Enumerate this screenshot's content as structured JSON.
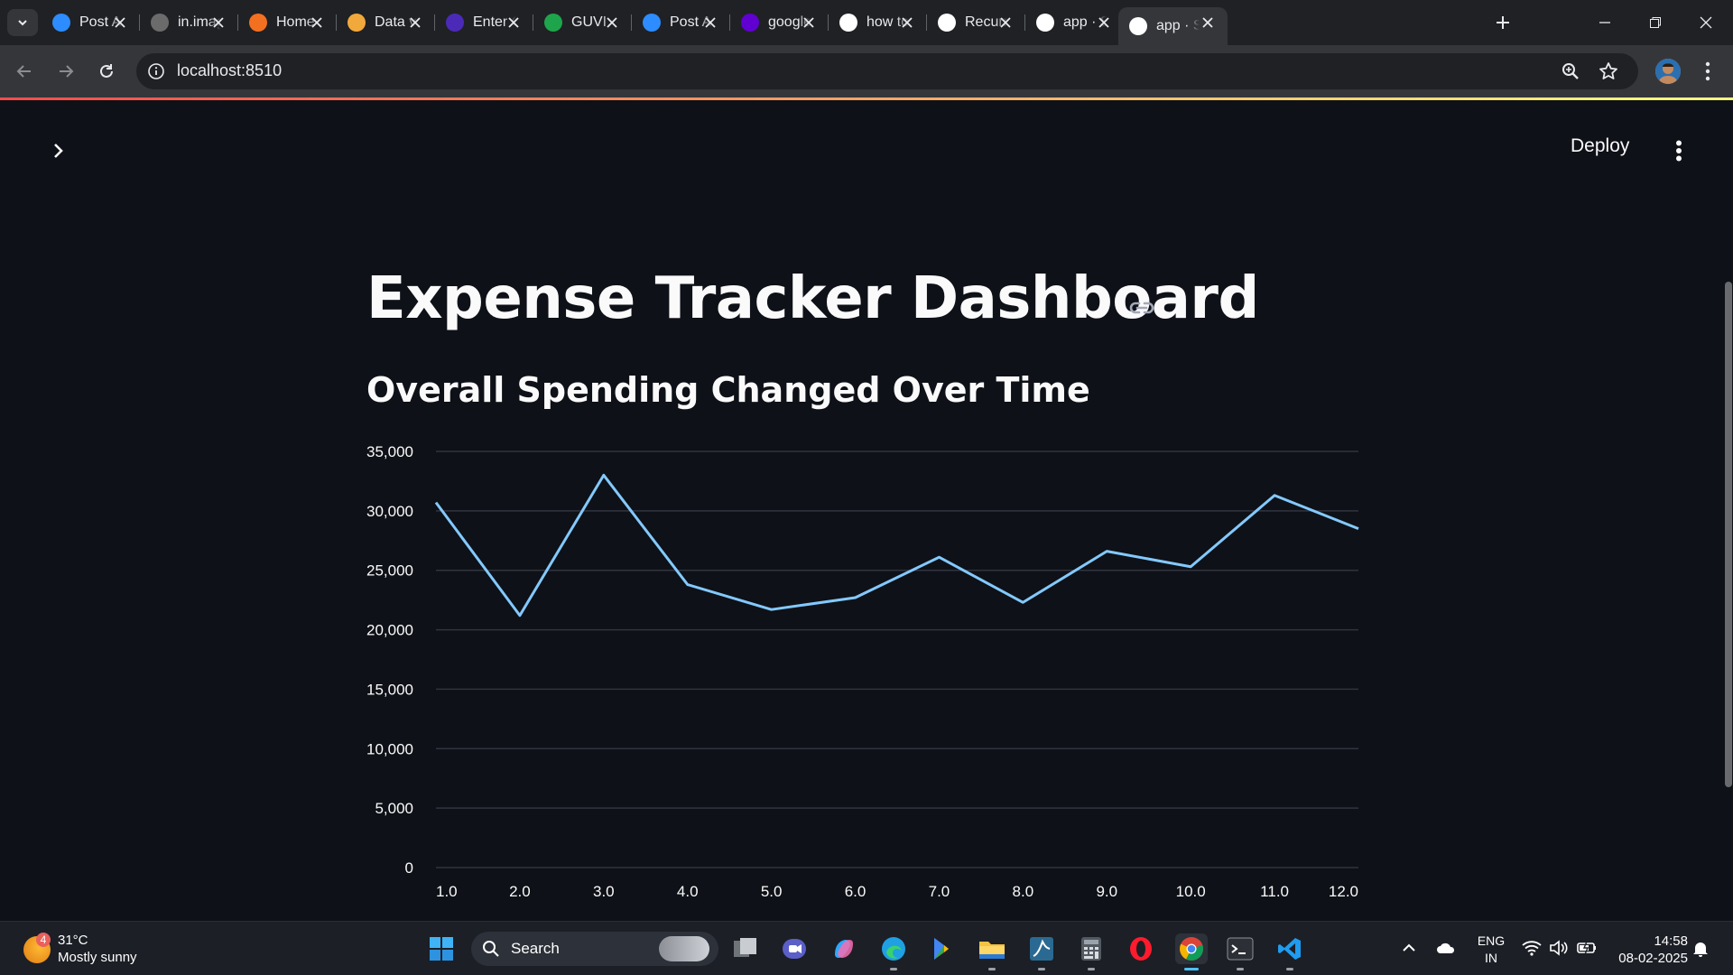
{
  "browser": {
    "tabs": [
      {
        "title": "Post A",
        "icon": "zm-icon",
        "color": "#2d8cff",
        "active": false
      },
      {
        "title": "in.imag",
        "icon": "y-icon",
        "color": "#6b6b6b",
        "active": false
      },
      {
        "title": "Home",
        "icon": "arc-icon",
        "color": "#f37021",
        "active": false
      },
      {
        "title": "Data vi",
        "icon": "book-icon",
        "color": "#f2a93b",
        "active": false
      },
      {
        "title": "Enter C",
        "icon": "k-icon",
        "color": "#4b2ab8",
        "active": false
      },
      {
        "title": "GUVI",
        "icon": "guvi-icon",
        "color": "#1ea54c",
        "active": false
      },
      {
        "title": "Post A",
        "icon": "zm-icon",
        "color": "#2d8cff",
        "active": false
      },
      {
        "title": "google",
        "icon": "yahoo-icon",
        "color": "#6001d2",
        "active": false
      },
      {
        "title": "how to",
        "icon": "google-icon",
        "color": "#ffffff",
        "active": false
      },
      {
        "title": "Recurr",
        "icon": "openai-icon",
        "color": "#ffffff",
        "active": false
      },
      {
        "title": "app · S",
        "icon": "streamlit-icon",
        "color": "#ffffff",
        "active": false
      },
      {
        "title": "app · S",
        "icon": "streamlit-icon",
        "color": "#ffffff",
        "active": true
      }
    ],
    "url": "localhost:8510"
  },
  "app": {
    "deploy_label": "Deploy",
    "title": "Expense Tracker Dashboard",
    "subheader": "Overall Spending Changed Over Time"
  },
  "chart_data": {
    "type": "line",
    "x": [
      1.0,
      2.0,
      3.0,
      4.0,
      5.0,
      6.0,
      7.0,
      8.0,
      9.0,
      10.0,
      11.0,
      12.0
    ],
    "x_tick_labels": [
      "1.0",
      "2.0",
      "3.0",
      "4.0",
      "5.0",
      "6.0",
      "7.0",
      "8.0",
      "9.0",
      "10.0",
      "11.0",
      "12.0"
    ],
    "series": [
      {
        "values": [
          30700,
          21200,
          33000,
          23800,
          21700,
          22700,
          26100,
          22300,
          26600,
          25300,
          31300,
          28500
        ],
        "color": "#83c9ff"
      }
    ],
    "y_ticks": [
      0,
      5000,
      10000,
      15000,
      20000,
      25000,
      30000,
      35000
    ],
    "y_tick_labels": [
      "0",
      "5,000",
      "10,000",
      "15,000",
      "20,000",
      "25,000",
      "30,000",
      "35,000"
    ],
    "ylim": [
      0,
      35000
    ],
    "xlim": [
      1.0,
      12.0
    ],
    "grid": true,
    "title": "",
    "xlabel": "",
    "ylabel": ""
  },
  "taskbar": {
    "weather_badge": "4",
    "temperature": "31°C",
    "weather": "Mostly sunny",
    "search_label": "Search",
    "lang_top": "ENG",
    "lang_bottom": "IN",
    "time": "14:58",
    "date": "08-02-2025"
  }
}
